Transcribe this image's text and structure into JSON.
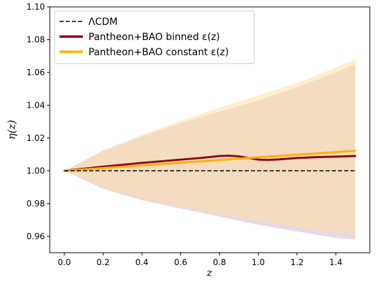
{
  "chart_data": {
    "type": "line",
    "xlabel": "z",
    "ylabel": "η(z)",
    "xlim": [
      -0.075,
      1.575
    ],
    "ylim": [
      0.95,
      1.1
    ],
    "xticks": [
      0.0,
      0.2,
      0.4,
      0.6,
      0.8,
      1.0,
      1.2,
      1.4
    ],
    "xtick_labels": [
      "0.0",
      "0.2",
      "0.4",
      "0.6",
      "0.8",
      "1.0",
      "1.2",
      "1.4"
    ],
    "yticks": [
      0.96,
      0.98,
      1.0,
      1.02,
      1.04,
      1.06,
      1.08,
      1.1
    ],
    "ytick_labels": [
      "0.96",
      "0.98",
      "1.00",
      "1.02",
      "1.04",
      "1.06",
      "1.08",
      "1.10"
    ],
    "grid": false,
    "legend_position": "top-left",
    "series": [
      {
        "name": "ΛCDM",
        "color": "#000000",
        "style": "dashed",
        "x": [
          0.0,
          1.5
        ],
        "y": [
          1.0,
          1.0
        ]
      },
      {
        "name": "Pantheon+BAO binned ε(z)",
        "color": "#8b0a1a",
        "style": "solid",
        "x": [
          0.0,
          0.2,
          0.4,
          0.6,
          0.7,
          0.8,
          0.85,
          0.9,
          0.95,
          1.0,
          1.05,
          1.1,
          1.2,
          1.3,
          1.4,
          1.5
        ],
        "y": [
          1.0,
          1.0025,
          1.0048,
          1.0068,
          1.0078,
          1.009,
          1.0092,
          1.0088,
          1.0078,
          1.0068,
          1.0066,
          1.0069,
          1.0078,
          1.0083,
          1.0086,
          1.009
        ],
        "band": {
          "color": "#c8a8c8",
          "x": [
            0.0,
            0.2,
            0.4,
            0.6,
            0.8,
            1.0,
            1.2,
            1.4,
            1.5
          ],
          "upper": [
            1.0,
            1.012,
            1.021,
            1.029,
            1.036,
            1.043,
            1.051,
            1.06,
            1.065
          ],
          "lower": [
            1.0,
            0.989,
            0.982,
            0.977,
            0.972,
            0.967,
            0.963,
            0.959,
            0.958
          ]
        }
      },
      {
        "name": "Pantheon+BAO constant ε(z)",
        "color": "#ffb000",
        "style": "solid",
        "x": [
          0.0,
          0.5,
          1.0,
          1.5
        ],
        "y": [
          1.0,
          1.0041,
          1.0082,
          1.0122
        ],
        "band": {
          "color": "#ffe0a0",
          "x": [
            0.0,
            0.2,
            0.4,
            0.6,
            0.8,
            1.0,
            1.2,
            1.4,
            1.5
          ],
          "upper": [
            1.0,
            1.0125,
            1.022,
            1.0305,
            1.0385,
            1.046,
            1.0535,
            1.063,
            1.068
          ],
          "lower": [
            1.0,
            0.9895,
            0.983,
            0.978,
            0.9735,
            0.9695,
            0.9655,
            0.9625,
            0.961
          ]
        }
      }
    ]
  }
}
